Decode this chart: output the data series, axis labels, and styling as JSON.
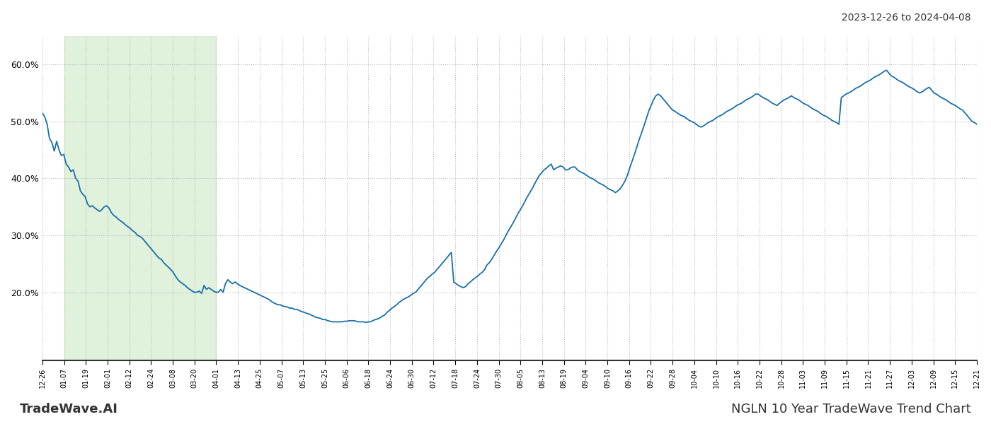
{
  "title_top_right": "2023-12-26 to 2024-04-08",
  "bottom_left": "TradeWave.AI",
  "bottom_right": "NGLN 10 Year TradeWave Trend Chart",
  "line_color": "#1a6fa8",
  "line_width": 1.3,
  "bg_color": "#ffffff",
  "grid_color": "#bbbbbb",
  "shade_color": "#c8e6c0",
  "shade_alpha": 0.55,
  "ylim": [
    0.08,
    0.65
  ],
  "yticks": [
    0.2,
    0.3,
    0.4,
    0.5,
    0.6
  ],
  "ytick_labels": [
    "20.0%",
    "30.0%",
    "40.0%",
    "50.0%",
    "60.0%"
  ],
  "x_labels": [
    "12-26",
    "01-07",
    "01-19",
    "02-01",
    "02-12",
    "02-24",
    "03-08",
    "03-20",
    "04-01",
    "04-13",
    "04-25",
    "05-07",
    "05-13",
    "05-25",
    "06-06",
    "06-18",
    "06-24",
    "06-30",
    "07-12",
    "07-18",
    "07-24",
    "07-30",
    "08-05",
    "08-13",
    "08-19",
    "09-04",
    "09-10",
    "09-16",
    "09-22",
    "09-28",
    "10-04",
    "10-10",
    "10-16",
    "10-22",
    "10-28",
    "11-03",
    "11-09",
    "11-15",
    "11-21",
    "11-27",
    "12-03",
    "12-09",
    "12-15",
    "12-21"
  ],
  "shade_start_label": "01-01",
  "shade_end_label": "04-01",
  "values": [
    0.515,
    0.508,
    0.495,
    0.47,
    0.463,
    0.448,
    0.465,
    0.45,
    0.44,
    0.442,
    0.425,
    0.42,
    0.412,
    0.415,
    0.4,
    0.395,
    0.378,
    0.372,
    0.368,
    0.355,
    0.35,
    0.352,
    0.348,
    0.345,
    0.342,
    0.345,
    0.35,
    0.352,
    0.348,
    0.34,
    0.335,
    0.332,
    0.328,
    0.325,
    0.322,
    0.318,
    0.315,
    0.312,
    0.308,
    0.305,
    0.3,
    0.298,
    0.295,
    0.29,
    0.285,
    0.28,
    0.275,
    0.27,
    0.265,
    0.26,
    0.258,
    0.252,
    0.248,
    0.244,
    0.24,
    0.235,
    0.228,
    0.222,
    0.218,
    0.215,
    0.212,
    0.208,
    0.205,
    0.202,
    0.2,
    0.2,
    0.202,
    0.198,
    0.212,
    0.205,
    0.208,
    0.205,
    0.202,
    0.2,
    0.2,
    0.205,
    0.2,
    0.215,
    0.222,
    0.218,
    0.215,
    0.218,
    0.215,
    0.212,
    0.21,
    0.208,
    0.206,
    0.204,
    0.202,
    0.2,
    0.198,
    0.196,
    0.194,
    0.192,
    0.19,
    0.188,
    0.185,
    0.182,
    0.18,
    0.178,
    0.178,
    0.176,
    0.175,
    0.174,
    0.172,
    0.172,
    0.17,
    0.17,
    0.168,
    0.166,
    0.165,
    0.163,
    0.162,
    0.16,
    0.158,
    0.156,
    0.155,
    0.154,
    0.152,
    0.152,
    0.15,
    0.149,
    0.148,
    0.148,
    0.148,
    0.148,
    0.148,
    0.149,
    0.149,
    0.15,
    0.15,
    0.15,
    0.149,
    0.148,
    0.148,
    0.148,
    0.147,
    0.148,
    0.148,
    0.15,
    0.152,
    0.153,
    0.155,
    0.158,
    0.16,
    0.165,
    0.168,
    0.172,
    0.175,
    0.178,
    0.182,
    0.185,
    0.188,
    0.19,
    0.192,
    0.195,
    0.198,
    0.2,
    0.205,
    0.21,
    0.215,
    0.22,
    0.225,
    0.228,
    0.232,
    0.235,
    0.24,
    0.245,
    0.25,
    0.255,
    0.26,
    0.265,
    0.27,
    0.218,
    0.215,
    0.212,
    0.21,
    0.208,
    0.21,
    0.215,
    0.218,
    0.222,
    0.225,
    0.228,
    0.232,
    0.235,
    0.24,
    0.248,
    0.252,
    0.258,
    0.265,
    0.272,
    0.278,
    0.285,
    0.292,
    0.3,
    0.308,
    0.315,
    0.322,
    0.33,
    0.338,
    0.345,
    0.352,
    0.36,
    0.368,
    0.375,
    0.382,
    0.39,
    0.398,
    0.405,
    0.41,
    0.415,
    0.418,
    0.422,
    0.425,
    0.415,
    0.418,
    0.42,
    0.422,
    0.42,
    0.415,
    0.415,
    0.418,
    0.42,
    0.42,
    0.415,
    0.412,
    0.41,
    0.408,
    0.405,
    0.402,
    0.4,
    0.398,
    0.395,
    0.392,
    0.39,
    0.388,
    0.385,
    0.382,
    0.38,
    0.378,
    0.375,
    0.378,
    0.382,
    0.388,
    0.395,
    0.405,
    0.418,
    0.43,
    0.442,
    0.455,
    0.468,
    0.48,
    0.492,
    0.505,
    0.518,
    0.528,
    0.538,
    0.545,
    0.548,
    0.545,
    0.54,
    0.535,
    0.53,
    0.525,
    0.52,
    0.518,
    0.515,
    0.512,
    0.51,
    0.508,
    0.505,
    0.502,
    0.5,
    0.498,
    0.495,
    0.492,
    0.49,
    0.492,
    0.495,
    0.498,
    0.5,
    0.502,
    0.505,
    0.508,
    0.51,
    0.512,
    0.515,
    0.518,
    0.52,
    0.522,
    0.525,
    0.528,
    0.53,
    0.532,
    0.535,
    0.538,
    0.54,
    0.542,
    0.545,
    0.548,
    0.548,
    0.545,
    0.542,
    0.54,
    0.538,
    0.535,
    0.532,
    0.53,
    0.528,
    0.532,
    0.535,
    0.538,
    0.54,
    0.542,
    0.545,
    0.542,
    0.54,
    0.538,
    0.535,
    0.532,
    0.53,
    0.528,
    0.525,
    0.522,
    0.52,
    0.518,
    0.515,
    0.512,
    0.51,
    0.508,
    0.505,
    0.502,
    0.5,
    0.498,
    0.495,
    0.542,
    0.545,
    0.548,
    0.55,
    0.552,
    0.555,
    0.558,
    0.56,
    0.562,
    0.565,
    0.568,
    0.57,
    0.572,
    0.575,
    0.578,
    0.58,
    0.582,
    0.585,
    0.588,
    0.59,
    0.585,
    0.58,
    0.578,
    0.575,
    0.572,
    0.57,
    0.568,
    0.565,
    0.562,
    0.56,
    0.558,
    0.555,
    0.552,
    0.55,
    0.552,
    0.555,
    0.558,
    0.56,
    0.555,
    0.55,
    0.548,
    0.545,
    0.542,
    0.54,
    0.538,
    0.535,
    0.532,
    0.53,
    0.528,
    0.525,
    0.522,
    0.52,
    0.515,
    0.51,
    0.505,
    0.5,
    0.498,
    0.495
  ]
}
